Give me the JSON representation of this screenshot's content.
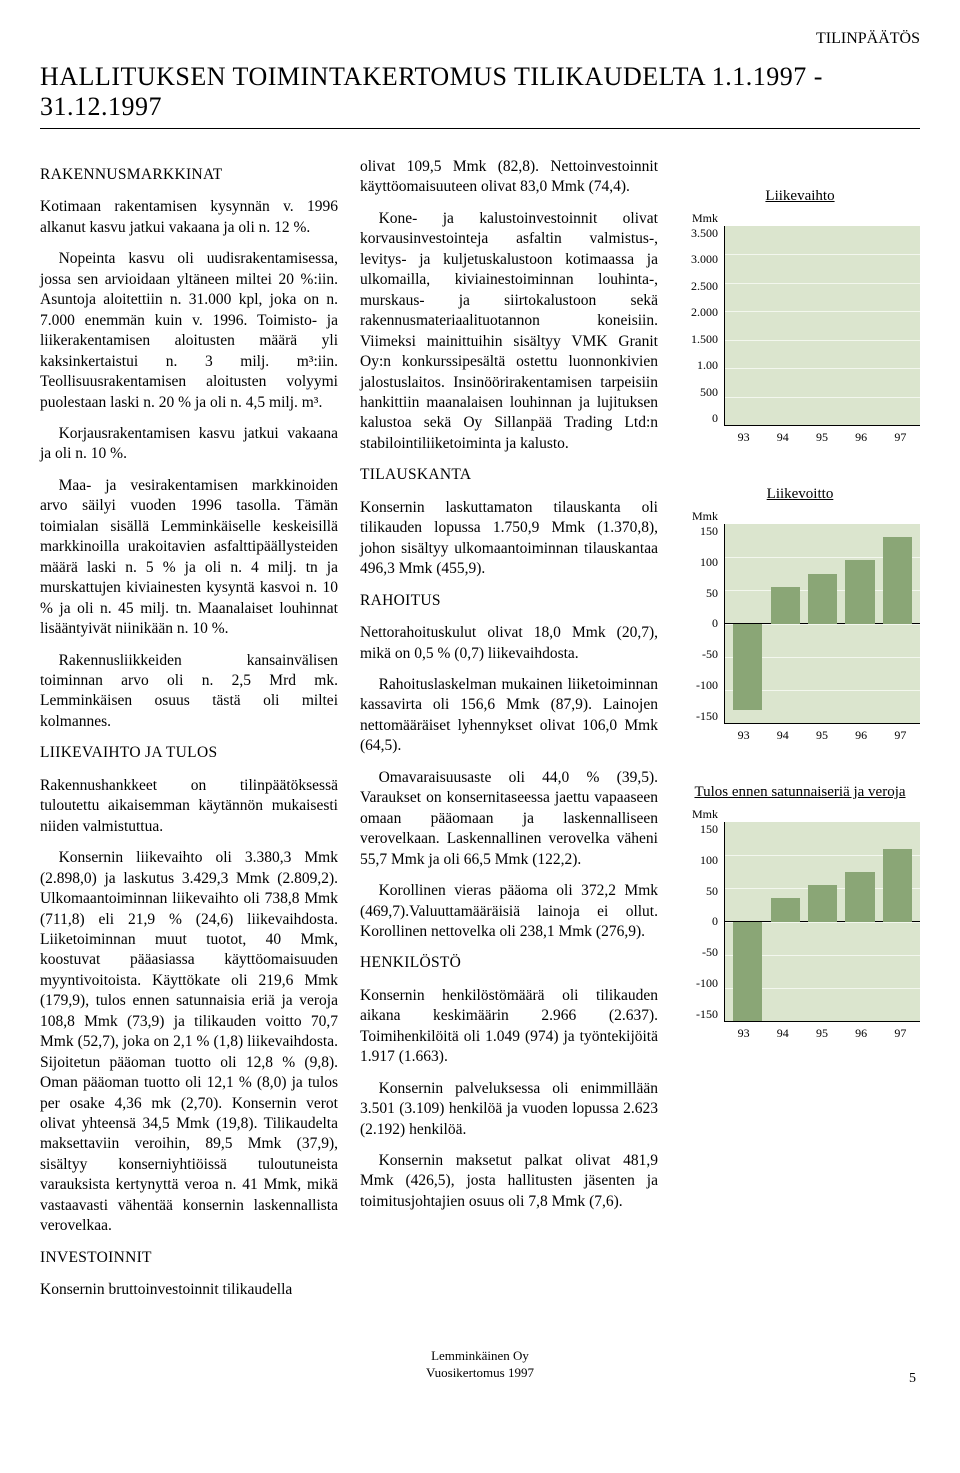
{
  "header": {
    "top_right": "TILINPÄÄTÖS",
    "title": "HALLITUKSEN TOIMINTAKERTOMUS TILIKAUDELTA 1.1.1997 - 31.12.1997"
  },
  "col1": {
    "h1": "RAKENNUSMARKKINAT",
    "p1": "Kotimaan rakentamisen kysynnän v. 1996 alkanut kasvu jatkui vakaana ja oli n. 12 %.",
    "p2": "Nopeinta kasvu oli uudisrakentamisessa, jossa sen arvioidaan yltäneen miltei 20 %:iin. Asuntoja aloitettiin n. 31.000 kpl, joka on n. 7.000 enemmän kuin v. 1996. Toimisto- ja liikerakentamisen aloitusten määrä yli kaksinkertaistui n. 3 milj. m³:iin. Teollisuusrakentamisen aloitusten volyymi puolestaan laski n. 20 % ja oli n. 4,5 milj. m³.",
    "p3": "Korjausrakentamisen kasvu jatkui vakaana ja oli n. 10 %.",
    "p4": "Maa- ja vesirakentamisen markkinoiden arvo säilyi vuoden 1996 tasolla. Tämän toimialan sisällä Lemminkäiselle keskeisillä markkinoilla urakoitavien asfalttipäällysteiden määrä laski n. 5 % ja oli n. 4 milj. tn ja murskattujen kiviainesten kysyntä kasvoi n. 10 % ja oli n. 45 milj. tn. Maanalaiset louhinnat lisääntyivät niinikään n. 10 %.",
    "p5": "Rakennusliikkeiden kansainvälisen toiminnan arvo oli n. 2,5 Mrd mk. Lemminkäisen osuus tästä oli miltei kolmannes.",
    "h2": "LIIKEVAIHTO JA TULOS",
    "p6": "Rakennushankkeet on tilinpäätöksessä tuloutettu aikaisemman käytännön mukaisesti niiden valmistuttua.",
    "p7": "Konsernin liikevaihto oli 3.380,3 Mmk (2.898,0) ja laskutus 3.429,3 Mmk (2.809,2). Ulkomaantoiminnan liikevaihto oli 738,8 Mmk (711,8) eli 21,9 % (24,6) liikevaihdosta. Liiketoiminnan muut tuotot, 40 Mmk, koostuvat pääasiassa käyttöomaisuuden myyntivoitoista. Käyttökate oli 219,6 Mmk (179,9), tulos ennen satunnaisia eriä ja veroja 108,8 Mmk (73,9) ja tilikauden voitto 70,7 Mmk (52,7), joka on 2,1 % (1,8) liikevaihdosta. Sijoitetun pääoman tuotto oli 12,8 % (9,8). Oman pääoman tuotto oli 12,1 % (8,0) ja tulos per osake 4,36 mk (2,70). Konsernin verot olivat yhteensä 34,5 Mmk (19,8). Tilikaudelta maksettaviin veroihin, 89,5 Mmk (37,9), sisältyy konserniyhtiöissä tuloutuneista varauksista kertynyttä veroa n. 41 Mmk, mikä vastaavasti vähentää konsernin laskennallista verovelkaa.",
    "h3": "INVESTOINNIT",
    "p8": "Konsernin bruttoinvestoinnit tilikaudella"
  },
  "col2": {
    "p1": "olivat 109,5 Mmk (82,8). Nettoinvestoinnit käyttöomaisuuteen olivat 83,0 Mmk (74,4).",
    "p2": "Kone- ja kalustoinvestoinnit olivat korvausinvestointeja asfaltin valmistus-, levitys- ja kuljetuskalustoon kotimaassa ja ulkomailla, kiviainestoiminnan louhinta-, murskaus- ja siirtokalustoon sekä rakennusmateriaalituotannon koneisiin. Viimeksi mainittuihin sisältyy VMK Granit Oy:n konkurssipesältä ostettu luonnonkivien jalostuslaitos. Insinöörirakentamisen tarpeisiin hankittiin maanalaisen louhinnan ja lujituksen kalustoa sekä Oy Sillanpää Trading Ltd:n stabilointiliiketoiminta ja kalusto.",
    "h1": "TILAUSKANTA",
    "p3": "Konsernin laskuttamaton tilauskanta oli tilikauden lopussa 1.750,9 Mmk (1.370,8), johon sisältyy ulkomaantoiminnan tilauskantaa 496,3 Mmk (455,9).",
    "h2": "RAHOITUS",
    "p4": "Nettorahoituskulut olivat 18,0 Mmk (20,7), mikä on 0,5 % (0,7) liikevaihdosta.",
    "p5": "Rahoituslaskelman mukainen liiketoiminnan kassavirta oli 156,6 Mmk (87,9). Lainojen nettomääräiset lyhennykset olivat 106,0 Mmk (64,5).",
    "p6": "Omavaraisuusaste oli 44,0 % (39,5). Varaukset on konsernitaseessa jaettu vapaaseen omaan pääomaan ja laskennalliseen verovelkaan. Laskennallinen verovelka väheni 55,7 Mmk ja oli 66,5 Mmk (122,2).",
    "p7": "Korollinen vieras pääoma oli 372,2 Mmk (469,7).Valuuttamääräisiä lainoja ei ollut. Korollinen nettovelka oli 238,1 Mmk (276,9).",
    "h3": "HENKILÖSTÖ",
    "p8": "Konsernin henkilöstömäärä oli tilikauden aikana keskimäärin 2.966 (2.637). Toimihenkilöitä oli 1.049 (974) ja työntekijöitä 1.917 (1.663).",
    "p9": "Konsernin palveluksessa oli enimmillään 3.501 (3.109) henkilöä ja vuoden lopussa 2.623 (2.192) henkilöä.",
    "p10": "Konsernin maksetut palkat olivat 481,9 Mmk (426,5), josta hallitusten jäsenten ja toimitusjohtajien osuus oli 7,8 Mmk (7,6)."
  },
  "charts": {
    "chart1": {
      "title": "Liikevaihto",
      "unit": "Mmk",
      "ylabels": [
        "3.500",
        "3.000",
        "2.500",
        "2.000",
        "1.500",
        "1.00",
        "500",
        "0"
      ],
      "ymax": 3500,
      "categories": [
        "93",
        "94",
        "95",
        "96",
        "97"
      ],
      "values": [
        2000,
        2350,
        2500,
        2900,
        3380
      ],
      "bar_color": "#8aa676",
      "bg_color": "#dbe5ce",
      "grid_color": "#f3f7ee"
    },
    "chart2": {
      "title": "Liikevoitto",
      "unit": "Mmk",
      "ylabels": [
        "150",
        "100",
        "50",
        "0",
        "-50",
        "-100",
        "-150"
      ],
      "ymin": -150,
      "ymax": 150,
      "categories": [
        "93",
        "94",
        "95",
        "96",
        "97"
      ],
      "values": [
        -130,
        55,
        75,
        95,
        130
      ],
      "bar_color": "#8aa676",
      "bg_color": "#dbe5ce",
      "grid_color": "#f3f7ee"
    },
    "chart3": {
      "title": "Tulos ennen satunnaiseriä ja veroja",
      "unit": "Mmk",
      "ylabels": [
        "150",
        "100",
        "50",
        "0",
        "-50",
        "-100",
        "-150"
      ],
      "ymin": -150,
      "ymax": 150,
      "categories": [
        "93",
        "94",
        "95",
        "96",
        "97"
      ],
      "values": [
        -150,
        35,
        55,
        74,
        109
      ],
      "bar_color": "#8aa676",
      "bg_color": "#dbe5ce",
      "grid_color": "#f3f7ee"
    }
  },
  "footer": {
    "line1": "Lemminkäinen Oy",
    "line2": "Vuosikertomus 1997",
    "page": "5"
  }
}
